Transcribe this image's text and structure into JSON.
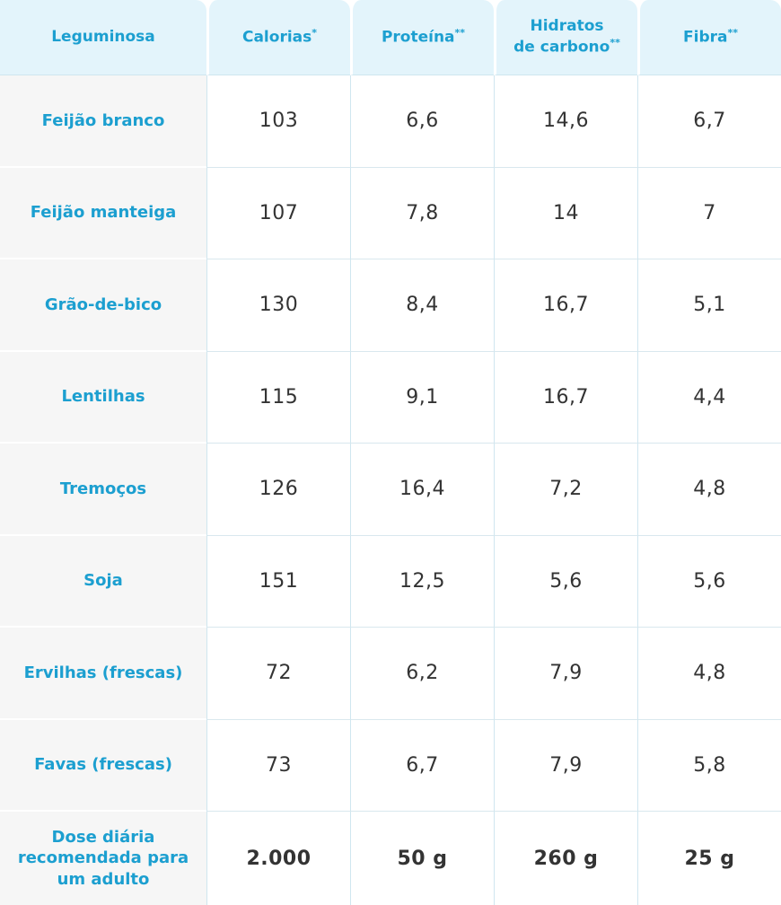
{
  "header": {
    "col0": "Leguminosa",
    "col1": "Calorias",
    "col1_mark": "*",
    "col2": "Proteína",
    "col2_mark": "**",
    "col3_line1": "Hidratos",
    "col3_line2": "de carbono",
    "col3_mark": "**",
    "col4": "Fibra",
    "col4_mark": "**"
  },
  "rows": [
    {
      "name": "Feijão branco",
      "calorias": "103",
      "proteina": "6,6",
      "hidratos": "14,6",
      "fibra": "6,7"
    },
    {
      "name": "Feijão manteiga",
      "calorias": "107",
      "proteina": "7,8",
      "hidratos": "14",
      "fibra": "7"
    },
    {
      "name": "Grão-de-bico",
      "calorias": "130",
      "proteina": "8,4",
      "hidratos": "16,7",
      "fibra": "5,1"
    },
    {
      "name": "Lentilhas",
      "calorias": "115",
      "proteina": "9,1",
      "hidratos": "16,7",
      "fibra": "4,4"
    },
    {
      "name": "Tremoços",
      "calorias": "126",
      "proteina": "16,4",
      "hidratos": "7,2",
      "fibra": "4,8"
    },
    {
      "name": "Soja",
      "calorias": "151",
      "proteina": "12,5",
      "hidratos": "5,6",
      "fibra": "5,6"
    },
    {
      "name": "Ervilhas (frescas)",
      "calorias": "72",
      "proteina": "6,2",
      "hidratos": "7,9",
      "fibra": "4,8"
    },
    {
      "name": "Favas (frescas)",
      "calorias": "73",
      "proteina": "6,7",
      "hidratos": "7,9",
      "fibra": "5,8"
    }
  ],
  "footer": {
    "name": "Dose diária recomendada para um adulto",
    "calorias": "2.000",
    "proteina": "50 g",
    "hidratos": "260 g",
    "fibra": "25 g"
  }
}
